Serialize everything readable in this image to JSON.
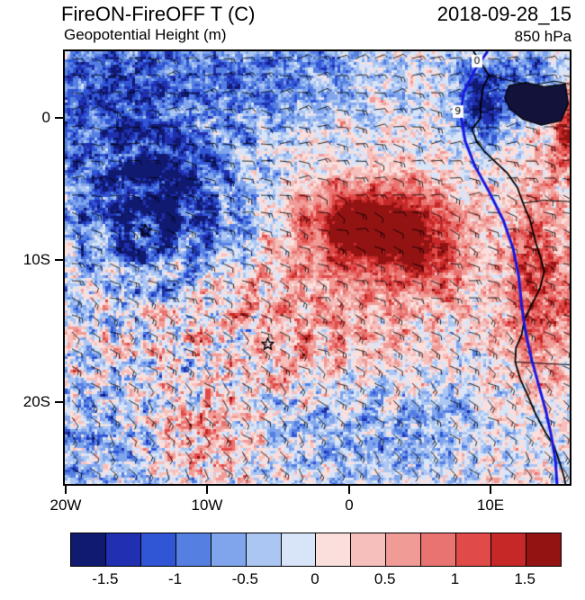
{
  "header": {
    "title_left": "FireON-FireOFF T (C)",
    "title_right": "2018-09-28_15",
    "subtitle_left": "Geopotential Height (m)",
    "subtitle_right": "850 hPa"
  },
  "axes": {
    "y_ticks": [
      {
        "label": "0",
        "lat": 0
      },
      {
        "label": "10S",
        "lat": -10
      },
      {
        "label": "20S",
        "lat": -20
      }
    ],
    "x_ticks": [
      {
        "label": "20W",
        "lon": -20
      },
      {
        "label": "10W",
        "lon": -10
      },
      {
        "label": "0",
        "lon": 0
      },
      {
        "label": "10E",
        "lon": 10
      }
    ]
  },
  "colorbar": {
    "labels": [
      "-1.5",
      "-1",
      "-0.5",
      "0",
      "0.5",
      "1",
      "1.5"
    ],
    "levels": [
      -1.5,
      -1.25,
      -1.0,
      -0.75,
      -0.5,
      -0.25,
      0,
      0.25,
      0.5,
      0.75,
      1.0,
      1.25,
      1.5
    ],
    "colors": [
      "#101A70",
      "#2030B0",
      "#3055D5",
      "#5580E2",
      "#80A5EC",
      "#ABC6F2",
      "#D8E4F8",
      "#FBDFDC",
      "#F6BFBC",
      "#F09B96",
      "#E97370",
      "#E04A48",
      "#C62828",
      "#931313"
    ]
  },
  "chart_data": {
    "type": "heatmap",
    "title": "FireON-FireOFF T (C)",
    "datetime": "2018-09-28_15",
    "pressure_level": "850 hPa",
    "overlays": [
      "Geopotential Height (m) contour (thick blue)",
      "wind barbs",
      "coastline"
    ],
    "value_units": "C",
    "lon_range": [
      -20.1,
      15.6
    ],
    "lat_range": [
      -25.8,
      4.7
    ],
    "value_levels": [
      -1.5,
      -1.25,
      -1.0,
      -0.75,
      -0.5,
      -0.25,
      0,
      0.25,
      0.5,
      0.75,
      1.0,
      1.25,
      1.5
    ],
    "field": {
      "centers": [
        {
          "lon": -13.5,
          "lat": -6.0,
          "amp": -1.7,
          "sx": 6.0,
          "sy": 5.0
        },
        {
          "lon": -17.0,
          "lat": 2.0,
          "amp": -1.1,
          "sx": 7.0,
          "sy": 5.0
        },
        {
          "lon": -5.0,
          "lat": 3.0,
          "amp": -0.9,
          "sx": 6.0,
          "sy": 3.0
        },
        {
          "lon": 1.5,
          "lat": -7.5,
          "amp": 2.1,
          "sx": 4.8,
          "sy": 3.0
        },
        {
          "lon": 6.0,
          "lat": -10.0,
          "amp": 0.9,
          "sx": 3.0,
          "sy": 3.0
        },
        {
          "lon": -2.0,
          "lat": -14.0,
          "amp": 0.6,
          "sx": 8.0,
          "sy": 5.0
        },
        {
          "lon": 2.0,
          "lat": -22.0,
          "amp": -0.6,
          "sx": 9.0,
          "sy": 4.0
        },
        {
          "lon": -19.0,
          "lat": -23.0,
          "amp": -0.6,
          "sx": 5.0,
          "sy": 5.0
        },
        {
          "lon": -10.0,
          "lat": -22.0,
          "amp": 0.7,
          "sx": 3.5,
          "sy": 3.0
        },
        {
          "lon": 9.5,
          "lat": 1.0,
          "amp": -1.5,
          "sx": 2.2,
          "sy": 2.8
        },
        {
          "lon": 13.5,
          "lat": -12.0,
          "amp": 1.2,
          "sx": 2.5,
          "sy": 7.0
        },
        {
          "lon": 13.0,
          "lat": 3.5,
          "amp": -0.8,
          "sx": 3.0,
          "sy": 2.0
        },
        {
          "lon": 15.8,
          "lat": -0.5,
          "amp": 1.4,
          "sx": 1.5,
          "sy": 3.5
        }
      ],
      "waves": [
        {
          "lon": -14.4,
          "lat": -8.0,
          "amp": 0.55,
          "k": 2.4,
          "damp": 9
        },
        {
          "lon": -5.75,
          "lat": -16.0,
          "amp": 0.3,
          "k": 2.8,
          "damp": 7
        }
      ],
      "noise_octaves": [
        [
          1.8,
          0.9
        ],
        [
          4.2,
          0.8
        ],
        [
          9.0,
          0.6
        ]
      ],
      "noise_suppress": {
        "lon": 2,
        "lat": -8,
        "sx": 6,
        "sy": 4,
        "factor": 0.55
      },
      "noise_boost": {
        "lon": -12,
        "lat": -18,
        "sx": 8,
        "sy": 8,
        "factor": 0.5
      }
    },
    "barbs": {
      "step_x": 21,
      "step_y": 19,
      "length": 12
    },
    "markers": [
      {
        "symbol": "star",
        "lon": -14.4,
        "lat": -7.95
      },
      {
        "symbol": "star",
        "lon": -5.75,
        "lat": -15.95
      }
    ],
    "contour_labels": [
      {
        "text": "0",
        "lon": 9.05,
        "lat": 4.0
      },
      {
        "text": "9",
        "lon": 7.7,
        "lat": 0.45
      }
    ]
  },
  "map": {
    "coastline_color": "#000000",
    "height_contour_color": "#1818E0",
    "coastline": [
      [
        8.8,
        4.7
      ],
      [
        9.3,
        3.9
      ],
      [
        9.9,
        3.0
      ],
      [
        9.5,
        2.2
      ],
      [
        9.3,
        1.0
      ],
      [
        9.3,
        0.0
      ],
      [
        8.7,
        -0.8
      ],
      [
        9.0,
        -1.6
      ],
      [
        9.6,
        -2.4
      ],
      [
        11.2,
        -3.9
      ],
      [
        11.9,
        -4.9
      ],
      [
        12.3,
        -6.0
      ],
      [
        12.8,
        -7.2
      ],
      [
        13.2,
        -8.8
      ],
      [
        13.5,
        -9.7
      ],
      [
        13.8,
        -10.8
      ],
      [
        13.5,
        -12.0
      ],
      [
        12.9,
        -13.2
      ],
      [
        12.4,
        -14.2
      ],
      [
        12.2,
        -15.3
      ],
      [
        11.8,
        -16.2
      ],
      [
        11.75,
        -17.2
      ],
      [
        12.1,
        -18.4
      ],
      [
        12.6,
        -19.5
      ],
      [
        13.2,
        -20.9
      ],
      [
        13.9,
        -22.2
      ],
      [
        14.45,
        -23.0
      ],
      [
        14.9,
        -24.3
      ],
      [
        15.2,
        -25.3
      ],
      [
        15.3,
        -25.8
      ]
    ],
    "borders": [
      [
        [
          9.9,
          3.0
        ],
        [
          11.5,
          2.6
        ],
        [
          13.0,
          2.3
        ],
        [
          14.5,
          2.6
        ],
        [
          15.6,
          2.4
        ]
      ],
      [
        [
          12.3,
          -6.0
        ],
        [
          13.8,
          -5.8
        ],
        [
          15.6,
          -5.9
        ]
      ],
      [
        [
          11.75,
          -17.2
        ],
        [
          13.5,
          -17.3
        ],
        [
          15.6,
          -17.4
        ]
      ]
    ],
    "dark_region": [
      [
        11.3,
        2.3
      ],
      [
        12.5,
        2.5
      ],
      [
        13.8,
        2.2
      ],
      [
        15.3,
        2.4
      ],
      [
        15.5,
        1.0
      ],
      [
        15.0,
        -0.2
      ],
      [
        13.6,
        -0.5
      ],
      [
        12.3,
        -0.1
      ],
      [
        11.4,
        0.6
      ],
      [
        11.0,
        1.4
      ]
    ],
    "height_contour": [
      [
        9.8,
        4.7
      ],
      [
        8.9,
        3.4
      ],
      [
        8.1,
        1.8
      ],
      [
        7.9,
        0.2
      ],
      [
        8.2,
        -1.6
      ],
      [
        8.9,
        -3.4
      ],
      [
        9.9,
        -5.2
      ],
      [
        10.9,
        -7.2
      ],
      [
        11.6,
        -9.2
      ],
      [
        12.0,
        -11.2
      ],
      [
        12.2,
        -13.2
      ],
      [
        12.5,
        -15.2
      ],
      [
        12.9,
        -17.0
      ],
      [
        13.4,
        -18.8
      ],
      [
        13.9,
        -20.6
      ],
      [
        14.3,
        -22.4
      ],
      [
        14.6,
        -24.2
      ],
      [
        14.7,
        -25.8
      ]
    ]
  }
}
